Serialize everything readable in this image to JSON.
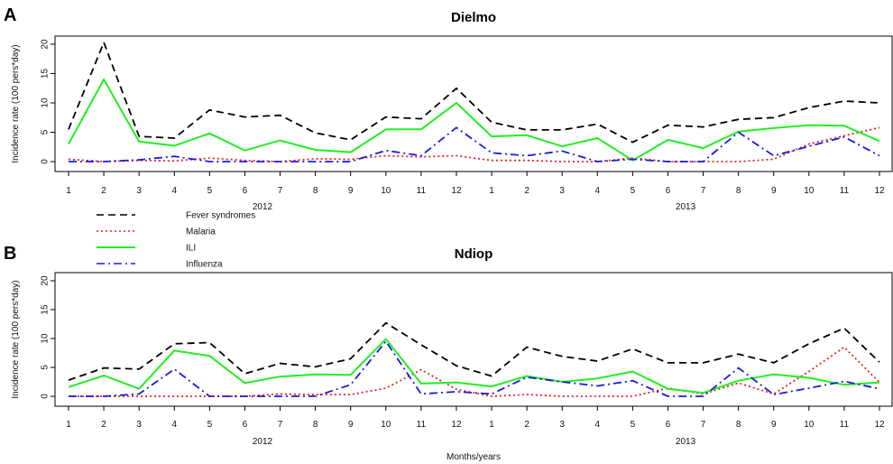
{
  "chart_data": [
    {
      "type": "line",
      "panel_letter": "A",
      "title": "Dielmo",
      "ylabel": "Incidence rate (100 pers*day)",
      "xlabel": "",
      "ylim": [
        0,
        20
      ],
      "yticks": [
        0,
        5,
        10,
        15,
        20
      ],
      "x_tick_labels": [
        "1",
        "2",
        "3",
        "4",
        "5",
        "6",
        "7",
        "8",
        "9",
        "10",
        "11",
        "12",
        "1",
        "2",
        "3",
        "4",
        "5",
        "6",
        "7",
        "8",
        "9",
        "10",
        "11",
        "12"
      ],
      "year_labels": [
        "2012",
        "2013"
      ],
      "grid": false,
      "legend_placement": "below",
      "series": [
        {
          "name": "Fever syndromes",
          "color": "#000000",
          "dash": "dashed",
          "values": [
            5.5,
            20.3,
            4.3,
            4.0,
            8.8,
            7.6,
            7.9,
            4.9,
            3.7,
            7.6,
            7.3,
            12.5,
            6.7,
            5.4,
            5.4,
            6.4,
            3.3,
            6.2,
            5.9,
            7.2,
            7.5,
            9.2,
            10.3,
            10.0
          ]
        },
        {
          "name": "Malaria",
          "color": "#e8231f",
          "dash": "dotted",
          "values": [
            0.4,
            0.0,
            0.2,
            0.1,
            0.6,
            0.2,
            0.0,
            0.5,
            0.4,
            1.0,
            0.8,
            1.0,
            0.2,
            0.2,
            0.0,
            0.0,
            0.6,
            0.0,
            0.0,
            0.0,
            0.4,
            3.0,
            4.4,
            5.8
          ]
        },
        {
          "name": "ILI",
          "color": "#22ee22",
          "dash": "solid",
          "values": [
            3.0,
            14.0,
            3.4,
            2.7,
            4.8,
            1.9,
            3.6,
            2.0,
            1.6,
            5.5,
            5.5,
            10.0,
            4.3,
            4.5,
            2.6,
            4.0,
            0.2,
            3.7,
            2.3,
            5.1,
            5.7,
            6.2,
            6.1,
            3.5
          ]
        },
        {
          "name": "Influenza",
          "color": "#1b1bdb",
          "dash": "dashdot",
          "values": [
            0.0,
            0.0,
            0.3,
            0.9,
            0.0,
            0.0,
            0.0,
            0.0,
            0.0,
            1.9,
            1.0,
            5.8,
            1.5,
            1.0,
            1.8,
            0.0,
            0.4,
            0.0,
            0.0,
            5.0,
            1.0,
            2.6,
            4.2,
            1.0
          ]
        }
      ]
    },
    {
      "type": "line",
      "panel_letter": "B",
      "title": "Ndiop",
      "ylabel": "Incidence rate (100 pers*day)",
      "xlabel": "Months/years",
      "ylim": [
        0,
        20
      ],
      "yticks": [
        0,
        5,
        10,
        15,
        20
      ],
      "x_tick_labels": [
        "1",
        "2",
        "3",
        "4",
        "5",
        "6",
        "7",
        "8",
        "9",
        "10",
        "11",
        "12",
        "1",
        "2",
        "3",
        "4",
        "5",
        "6",
        "7",
        "8",
        "9",
        "10",
        "11",
        "12"
      ],
      "year_labels": [
        "2012",
        "2013"
      ],
      "grid": false,
      "series": [
        {
          "name": "Fever syndromes",
          "color": "#000000",
          "dash": "dashed",
          "values": [
            2.8,
            4.9,
            4.7,
            9.1,
            9.3,
            3.9,
            5.7,
            5.1,
            6.5,
            12.7,
            8.9,
            5.3,
            3.5,
            8.5,
            6.9,
            6.1,
            8.2,
            5.8,
            5.8,
            7.3,
            5.8,
            9.1,
            11.8,
            5.9
          ]
        },
        {
          "name": "Malaria",
          "color": "#e8231f",
          "dash": "dotted",
          "values": [
            0.0,
            0.0,
            0.0,
            0.0,
            0.0,
            0.0,
            0.4,
            0.3,
            0.3,
            1.4,
            4.6,
            1.2,
            0.0,
            0.3,
            0.0,
            0.0,
            0.0,
            1.4,
            0.4,
            2.3,
            0.4,
            4.3,
            8.5,
            2.4
          ]
        },
        {
          "name": "ILI",
          "color": "#22ee22",
          "dash": "solid",
          "values": [
            1.6,
            3.6,
            1.3,
            7.9,
            7.0,
            2.3,
            3.4,
            3.8,
            3.7,
            9.9,
            2.2,
            2.4,
            1.7,
            3.5,
            2.5,
            3.1,
            4.3,
            1.3,
            0.6,
            2.7,
            3.8,
            3.2,
            2.0,
            2.4
          ]
        },
        {
          "name": "Influenza",
          "color": "#1b1bdb",
          "dash": "dashdot",
          "values": [
            0.0,
            0.0,
            0.4,
            4.7,
            0.0,
            0.0,
            0.0,
            0.0,
            2.0,
            9.5,
            0.4,
            0.8,
            0.4,
            3.3,
            2.5,
            1.8,
            2.7,
            0.0,
            0.0,
            4.9,
            0.3,
            1.4,
            2.6,
            1.3
          ]
        }
      ]
    }
  ]
}
